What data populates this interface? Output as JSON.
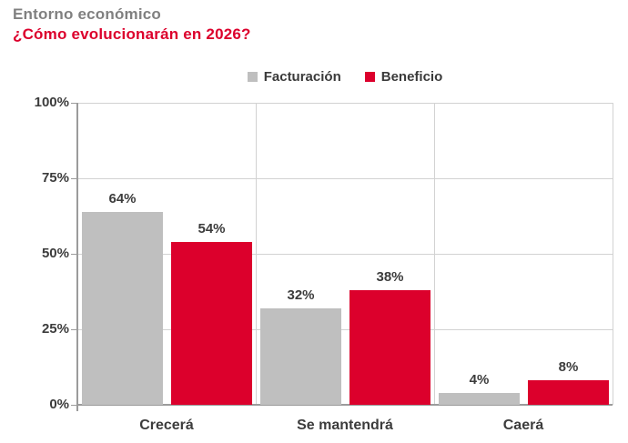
{
  "header": {
    "title": "Entorno económico",
    "subtitle": "¿Cómo evolucionarán en 2026?"
  },
  "colors": {
    "title_gray": "#808080",
    "accent_red": "#DC002C",
    "bar_gray": "#BFBFBF",
    "text_dark": "#3C3C3C",
    "gridline": "#D2D2D2",
    "axis": "#9B9B9B"
  },
  "chart_data": {
    "type": "bar",
    "title": "Entorno económico",
    "subtitle": "¿Cómo evolucionarán en 2026?",
    "categories": [
      "Crecerá",
      "Se mantendrá",
      "Caerá"
    ],
    "series": [
      {
        "name": "Facturación",
        "color": "#BFBFBF",
        "values": [
          64,
          32,
          4
        ]
      },
      {
        "name": "Beneficio",
        "color": "#DC002C",
        "values": [
          54,
          38,
          8
        ]
      }
    ],
    "value_suffix": "%",
    "xlabel": "",
    "ylabel": "",
    "ylim": [
      0,
      100
    ],
    "y_tick_step": 25,
    "y_tick_labels": [
      "0%",
      "25%",
      "50%",
      "75%",
      "100%"
    ],
    "grid": true,
    "legend_position": "top-center"
  }
}
